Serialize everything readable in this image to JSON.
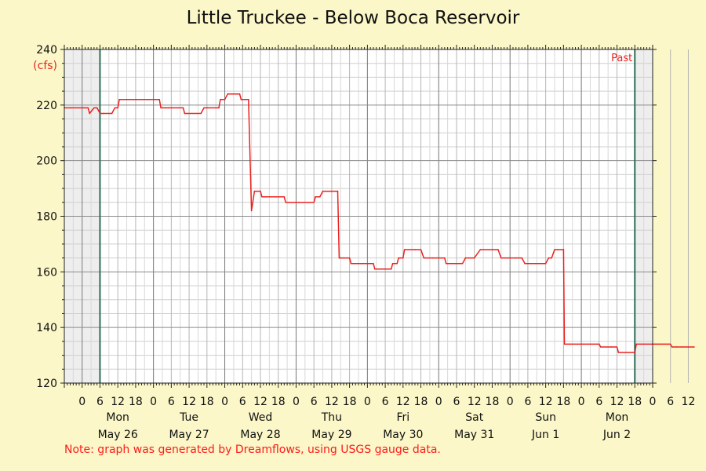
{
  "title": "Little Truckee - Below Boca Reservoir",
  "note": "Note: graph was generated by Dreamflows, using USGS gauge data.",
  "chart_data": {
    "type": "line",
    "title": "Little Truckee - Below Boca Reservoir",
    "unit_label": "(cfs)",
    "past_label": "Past",
    "ylim": [
      120,
      240
    ],
    "yticks": [
      120,
      140,
      160,
      180,
      200,
      220,
      240
    ],
    "xlim_hours": [
      -6,
      192
    ],
    "grid": true,
    "colors": {
      "line": "#e8231f",
      "marker": "#2e6e5a",
      "shade": "#eeeeee",
      "background": "#fbf7c8"
    },
    "hour_ticks": [
      "0",
      "6",
      "12",
      "18",
      "0",
      "6",
      "12",
      "18",
      "0",
      "6",
      "12",
      "18",
      "0",
      "6",
      "12",
      "18",
      "0",
      "6",
      "12",
      "18",
      "0",
      "6",
      "12",
      "18",
      "0",
      "6",
      "12",
      "18",
      "0",
      "6",
      "12",
      "18",
      "0",
      "6",
      "12"
    ],
    "days": [
      {
        "weekday": "Mon",
        "date": "May 26"
      },
      {
        "weekday": "Tue",
        "date": "May 27"
      },
      {
        "weekday": "Wed",
        "date": "May 28"
      },
      {
        "weekday": "Thu",
        "date": "May 29"
      },
      {
        "weekday": "Fri",
        "date": "May 30"
      },
      {
        "weekday": "Sat",
        "date": "May 31"
      },
      {
        "weekday": "Sun",
        "date": "Jun 1"
      },
      {
        "weekday": "Mon",
        "date": "Jun 2"
      }
    ],
    "series": [
      {
        "points": [
          [
            -6,
            219
          ],
          [
            -4,
            219
          ],
          [
            2,
            219
          ],
          [
            2.5,
            217
          ],
          [
            4,
            219
          ],
          [
            5,
            219
          ],
          [
            6,
            217
          ],
          [
            7,
            217
          ],
          [
            10,
            217
          ],
          [
            11,
            219
          ],
          [
            12,
            219
          ],
          [
            12.5,
            222
          ],
          [
            13,
            222
          ],
          [
            26,
            222
          ],
          [
            26.5,
            219
          ],
          [
            28,
            219
          ],
          [
            29,
            219
          ],
          [
            34,
            219
          ],
          [
            34.5,
            217
          ],
          [
            40,
            217
          ],
          [
            41,
            219
          ],
          [
            42,
            219
          ],
          [
            46,
            219
          ],
          [
            46.5,
            222
          ],
          [
            48,
            222
          ],
          [
            49,
            224
          ],
          [
            53,
            224
          ],
          [
            53.5,
            222
          ],
          [
            54,
            222
          ],
          [
            56,
            222
          ],
          [
            57,
            182
          ],
          [
            58,
            189
          ],
          [
            60,
            189
          ],
          [
            60.5,
            187
          ],
          [
            68,
            187
          ],
          [
            68.5,
            185
          ],
          [
            78,
            185
          ],
          [
            78.5,
            187
          ],
          [
            80,
            187
          ],
          [
            81,
            189
          ],
          [
            84,
            189
          ],
          [
            86,
            189
          ],
          [
            86.5,
            165
          ],
          [
            88,
            165
          ],
          [
            90,
            165
          ],
          [
            90.5,
            163
          ],
          [
            98,
            163
          ],
          [
            98.5,
            161
          ],
          [
            104,
            161
          ],
          [
            104.5,
            163
          ],
          [
            106,
            163
          ],
          [
            106.5,
            165
          ],
          [
            108,
            165
          ],
          [
            108.5,
            168
          ],
          [
            112,
            168
          ],
          [
            114,
            168
          ],
          [
            115,
            165
          ],
          [
            118,
            165
          ],
          [
            122,
            165
          ],
          [
            122.5,
            163
          ],
          [
            126,
            163
          ],
          [
            128,
            163
          ],
          [
            129,
            165
          ],
          [
            132,
            165
          ],
          [
            134,
            168
          ],
          [
            138,
            168
          ],
          [
            140,
            168
          ],
          [
            141,
            165
          ],
          [
            146,
            165
          ],
          [
            148,
            165
          ],
          [
            149,
            163
          ],
          [
            154,
            163
          ],
          [
            156,
            163
          ],
          [
            157,
            165
          ],
          [
            158,
            165
          ],
          [
            159,
            168
          ],
          [
            160,
            168
          ],
          [
            162,
            168
          ],
          [
            162.3,
            134
          ],
          [
            164,
            134
          ],
          [
            174,
            134
          ],
          [
            174.5,
            133
          ],
          [
            178,
            133
          ],
          [
            180,
            133
          ],
          [
            180.5,
            131
          ],
          [
            186,
            131
          ],
          [
            186.5,
            134
          ],
          [
            194,
            134
          ],
          [
            198,
            134
          ],
          [
            198.5,
            133
          ],
          [
            200,
            133
          ],
          [
            202,
            133
          ],
          [
            204,
            133
          ],
          [
            206,
            133
          ]
        ]
      }
    ]
  }
}
